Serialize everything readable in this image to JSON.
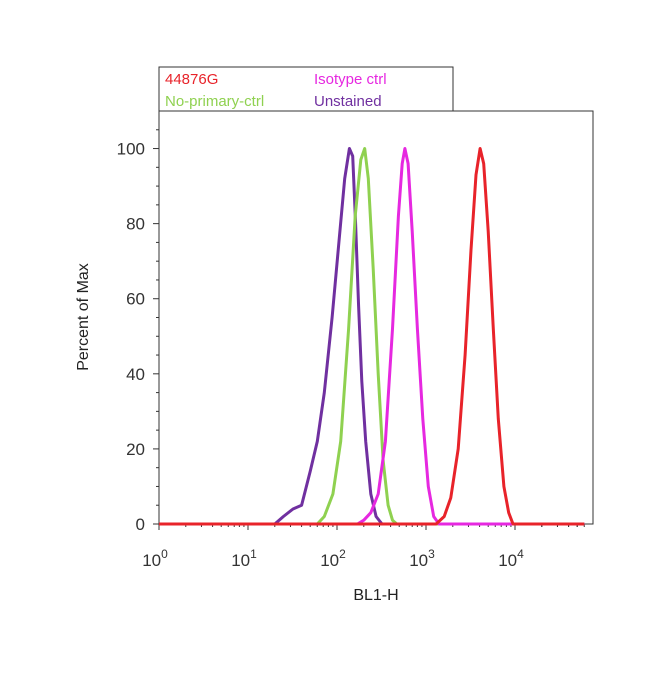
{
  "chart_data": {
    "type": "line",
    "xlabel": "BL1-H",
    "ylabel": "Percent of Max",
    "x_scale": "log",
    "xlim": [
      1,
      60000
    ],
    "ylim": [
      0,
      110
    ],
    "x_ticks": [
      {
        "value": 1,
        "base": "10",
        "exp": "0"
      },
      {
        "value": 10,
        "base": "10",
        "exp": "1"
      },
      {
        "value": 100,
        "base": "10",
        "exp": "2"
      },
      {
        "value": 1000,
        "base": "10",
        "exp": "3"
      },
      {
        "value": 10000,
        "base": "10",
        "exp": "4"
      }
    ],
    "y_ticks": [
      0,
      20,
      40,
      60,
      80,
      100
    ],
    "grid": false,
    "legend_position": "top-left",
    "legend": [
      {
        "name": "44876G",
        "color": "#e8232a"
      },
      {
        "name": "Isotype ctrl",
        "color": "#e628e0"
      },
      {
        "name": "No-primary-ctrl",
        "color": "#8fd150"
      },
      {
        "name": "Unstained",
        "color": "#7030a0"
      }
    ],
    "series": [
      {
        "name": "Unstained",
        "color": "#7030a0",
        "points": [
          [
            1,
            0
          ],
          [
            20,
            0
          ],
          [
            25,
            2
          ],
          [
            32,
            4
          ],
          [
            40,
            5
          ],
          [
            50,
            14
          ],
          [
            60,
            22
          ],
          [
            72,
            35
          ],
          [
            88,
            55
          ],
          [
            105,
            75
          ],
          [
            122,
            92
          ],
          [
            138,
            100
          ],
          [
            150,
            98
          ],
          [
            162,
            80
          ],
          [
            175,
            58
          ],
          [
            190,
            38
          ],
          [
            210,
            22
          ],
          [
            240,
            8
          ],
          [
            275,
            2
          ],
          [
            320,
            0
          ],
          [
            60000,
            0
          ]
        ]
      },
      {
        "name": "No-primary-ctrl",
        "color": "#8fd150",
        "points": [
          [
            1,
            0
          ],
          [
            60,
            0
          ],
          [
            72,
            2
          ],
          [
            90,
            8
          ],
          [
            110,
            22
          ],
          [
            135,
            52
          ],
          [
            160,
            82
          ],
          [
            185,
            97
          ],
          [
            205,
            100
          ],
          [
            225,
            92
          ],
          [
            255,
            68
          ],
          [
            290,
            40
          ],
          [
            330,
            17
          ],
          [
            375,
            5
          ],
          [
            420,
            1
          ],
          [
            470,
            0
          ],
          [
            60000,
            0
          ]
        ]
      },
      {
        "name": "Isotype ctrl",
        "color": "#e628e0",
        "points": [
          [
            1,
            0
          ],
          [
            170,
            0
          ],
          [
            200,
            1
          ],
          [
            240,
            3
          ],
          [
            290,
            8
          ],
          [
            350,
            22
          ],
          [
            420,
            52
          ],
          [
            490,
            82
          ],
          [
            540,
            96
          ],
          [
            580,
            100
          ],
          [
            630,
            96
          ],
          [
            700,
            78
          ],
          [
            800,
            52
          ],
          [
            920,
            28
          ],
          [
            1060,
            10
          ],
          [
            1220,
            2
          ],
          [
            1400,
            0
          ],
          [
            60000,
            0
          ]
        ]
      },
      {
        "name": "44876G",
        "color": "#e8232a",
        "points": [
          [
            1,
            0
          ],
          [
            1300,
            0
          ],
          [
            1600,
            2
          ],
          [
            1900,
            7
          ],
          [
            2300,
            20
          ],
          [
            2750,
            45
          ],
          [
            3200,
            73
          ],
          [
            3650,
            93
          ],
          [
            4050,
            100
          ],
          [
            4450,
            96
          ],
          [
            5000,
            78
          ],
          [
            5700,
            52
          ],
          [
            6500,
            28
          ],
          [
            7500,
            10
          ],
          [
            8500,
            3
          ],
          [
            9500,
            0
          ],
          [
            60000,
            0
          ]
        ]
      }
    ]
  }
}
